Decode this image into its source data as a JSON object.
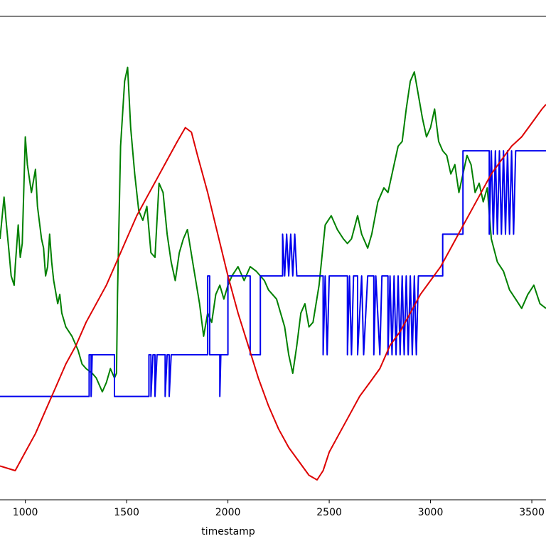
{
  "chart_data": {
    "type": "line",
    "xlabel": "timestamp",
    "ylabel": "",
    "title": "",
    "grid": false,
    "xlim": [
      875,
      3570
    ],
    "ylim": [
      0,
      100
    ],
    "x_ticks": [
      1000,
      1500,
      2000,
      2500,
      3000,
      3500
    ],
    "x_tick_labels": [
      "1000",
      "1500",
      "2000",
      "2500",
      "3000",
      "3500"
    ],
    "series": [
      {
        "color": "#008000",
        "points": [
          [
            875,
            52
          ],
          [
            895,
            61
          ],
          [
            905,
            56
          ],
          [
            920,
            49
          ],
          [
            930,
            44
          ],
          [
            945,
            42
          ],
          [
            950,
            46
          ],
          [
            965,
            55
          ],
          [
            975,
            48
          ],
          [
            985,
            51
          ],
          [
            1000,
            74
          ],
          [
            1010,
            68
          ],
          [
            1030,
            62
          ],
          [
            1050,
            67
          ],
          [
            1060,
            59
          ],
          [
            1080,
            52
          ],
          [
            1090,
            50
          ],
          [
            1100,
            44
          ],
          [
            1110,
            46
          ],
          [
            1120,
            53
          ],
          [
            1130,
            47
          ],
          [
            1140,
            43
          ],
          [
            1160,
            38
          ],
          [
            1170,
            40
          ],
          [
            1180,
            36
          ],
          [
            1200,
            33
          ],
          [
            1230,
            31
          ],
          [
            1260,
            28
          ],
          [
            1280,
            25
          ],
          [
            1300,
            24
          ],
          [
            1330,
            23
          ],
          [
            1350,
            22
          ],
          [
            1380,
            19
          ],
          [
            1400,
            21
          ],
          [
            1420,
            24
          ],
          [
            1440,
            22
          ],
          [
            1450,
            23
          ],
          [
            1455,
            40
          ],
          [
            1470,
            72
          ],
          [
            1490,
            86
          ],
          [
            1505,
            89
          ],
          [
            1520,
            76
          ],
          [
            1540,
            66
          ],
          [
            1560,
            58
          ],
          [
            1580,
            56
          ],
          [
            1600,
            59
          ],
          [
            1620,
            49
          ],
          [
            1640,
            48
          ],
          [
            1660,
            64
          ],
          [
            1680,
            62
          ],
          [
            1700,
            53
          ],
          [
            1720,
            47
          ],
          [
            1740,
            43
          ],
          [
            1760,
            49
          ],
          [
            1780,
            52
          ],
          [
            1800,
            54
          ],
          [
            1830,
            46
          ],
          [
            1860,
            38
          ],
          [
            1880,
            31
          ],
          [
            1900,
            36
          ],
          [
            1920,
            34
          ],
          [
            1940,
            40
          ],
          [
            1960,
            42
          ],
          [
            1980,
            39
          ],
          [
            2000,
            42
          ],
          [
            2020,
            44
          ],
          [
            2050,
            46
          ],
          [
            2080,
            43
          ],
          [
            2110,
            46
          ],
          [
            2140,
            45
          ],
          [
            2180,
            43
          ],
          [
            2200,
            41
          ],
          [
            2240,
            39
          ],
          [
            2260,
            36
          ],
          [
            2280,
            33
          ],
          [
            2300,
            27
          ],
          [
            2320,
            23
          ],
          [
            2340,
            29
          ],
          [
            2360,
            36
          ],
          [
            2380,
            38
          ],
          [
            2400,
            33
          ],
          [
            2420,
            34
          ],
          [
            2450,
            42
          ],
          [
            2480,
            55
          ],
          [
            2510,
            57
          ],
          [
            2540,
            54
          ],
          [
            2570,
            52
          ],
          [
            2590,
            51
          ],
          [
            2610,
            52
          ],
          [
            2640,
            57
          ],
          [
            2660,
            53
          ],
          [
            2690,
            50
          ],
          [
            2710,
            53
          ],
          [
            2740,
            60
          ],
          [
            2770,
            63
          ],
          [
            2790,
            62
          ],
          [
            2820,
            68
          ],
          [
            2840,
            72
          ],
          [
            2860,
            73
          ],
          [
            2880,
            80
          ],
          [
            2900,
            86
          ],
          [
            2920,
            88
          ],
          [
            2940,
            83
          ],
          [
            2960,
            78
          ],
          [
            2980,
            74
          ],
          [
            3000,
            76
          ],
          [
            3020,
            80
          ],
          [
            3040,
            73
          ],
          [
            3060,
            71
          ],
          [
            3080,
            70
          ],
          [
            3100,
            66
          ],
          [
            3120,
            68
          ],
          [
            3140,
            62
          ],
          [
            3160,
            66
          ],
          [
            3180,
            70
          ],
          [
            3200,
            68
          ],
          [
            3220,
            62
          ],
          [
            3240,
            64
          ],
          [
            3260,
            60
          ],
          [
            3280,
            63
          ],
          [
            3300,
            52
          ],
          [
            3330,
            47
          ],
          [
            3360,
            45
          ],
          [
            3390,
            41
          ],
          [
            3420,
            39
          ],
          [
            3450,
            37
          ],
          [
            3480,
            40
          ],
          [
            3510,
            42
          ],
          [
            3540,
            38
          ],
          [
            3570,
            37
          ]
        ]
      },
      {
        "color": "#0000ee",
        "points": [
          [
            875,
            18
          ],
          [
            1315,
            18
          ],
          [
            1315,
            27
          ],
          [
            1325,
            27
          ],
          [
            1325,
            18
          ],
          [
            1330,
            27
          ],
          [
            1440,
            27
          ],
          [
            1440,
            18
          ],
          [
            1610,
            18
          ],
          [
            1610,
            27
          ],
          [
            1620,
            27
          ],
          [
            1620,
            18
          ],
          [
            1630,
            27
          ],
          [
            1640,
            27
          ],
          [
            1640,
            18
          ],
          [
            1650,
            27
          ],
          [
            1690,
            27
          ],
          [
            1690,
            18
          ],
          [
            1700,
            27
          ],
          [
            1710,
            27
          ],
          [
            1710,
            18
          ],
          [
            1720,
            27
          ],
          [
            1900,
            27
          ],
          [
            1900,
            44
          ],
          [
            1910,
            44
          ],
          [
            1910,
            27
          ],
          [
            1960,
            27
          ],
          [
            1960,
            18
          ],
          [
            1965,
            27
          ],
          [
            2000,
            27
          ],
          [
            2000,
            44
          ],
          [
            2110,
            44
          ],
          [
            2110,
            27
          ],
          [
            2160,
            27
          ],
          [
            2160,
            44
          ],
          [
            2270,
            44
          ],
          [
            2270,
            53
          ],
          [
            2280,
            44
          ],
          [
            2290,
            53
          ],
          [
            2300,
            44
          ],
          [
            2310,
            53
          ],
          [
            2320,
            44
          ],
          [
            2330,
            53
          ],
          [
            2340,
            44
          ],
          [
            2470,
            44
          ],
          [
            2470,
            27
          ],
          [
            2480,
            44
          ],
          [
            2490,
            27
          ],
          [
            2500,
            44
          ],
          [
            2590,
            44
          ],
          [
            2590,
            27
          ],
          [
            2600,
            44
          ],
          [
            2610,
            27
          ],
          [
            2620,
            44
          ],
          [
            2640,
            44
          ],
          [
            2640,
            27
          ],
          [
            2660,
            44
          ],
          [
            2670,
            27
          ],
          [
            2690,
            44
          ],
          [
            2720,
            44
          ],
          [
            2720,
            27
          ],
          [
            2730,
            44
          ],
          [
            2750,
            27
          ],
          [
            2760,
            44
          ],
          [
            2790,
            44
          ],
          [
            2790,
            27
          ],
          [
            2800,
            44
          ],
          [
            2810,
            27
          ],
          [
            2820,
            44
          ],
          [
            2830,
            27
          ],
          [
            2840,
            44
          ],
          [
            2850,
            27
          ],
          [
            2860,
            44
          ],
          [
            2870,
            27
          ],
          [
            2880,
            44
          ],
          [
            2890,
            27
          ],
          [
            2900,
            44
          ],
          [
            2910,
            27
          ],
          [
            2920,
            44
          ],
          [
            2930,
            27
          ],
          [
            2940,
            44
          ],
          [
            3060,
            44
          ],
          [
            3060,
            53
          ],
          [
            3160,
            53
          ],
          [
            3160,
            71
          ],
          [
            3290,
            71
          ],
          [
            3290,
            53
          ],
          [
            3300,
            71
          ],
          [
            3310,
            53
          ],
          [
            3320,
            71
          ],
          [
            3330,
            53
          ],
          [
            3340,
            71
          ],
          [
            3350,
            53
          ],
          [
            3360,
            71
          ],
          [
            3370,
            53
          ],
          [
            3380,
            71
          ],
          [
            3390,
            53
          ],
          [
            3400,
            71
          ],
          [
            3410,
            53
          ],
          [
            3420,
            71
          ],
          [
            3570,
            71
          ]
        ]
      },
      {
        "color": "#dd0000",
        "points": [
          [
            875,
            3
          ],
          [
            950,
            2
          ],
          [
            1000,
            6
          ],
          [
            1050,
            10
          ],
          [
            1100,
            15
          ],
          [
            1150,
            20
          ],
          [
            1200,
            25
          ],
          [
            1250,
            29
          ],
          [
            1300,
            34
          ],
          [
            1350,
            38
          ],
          [
            1400,
            42
          ],
          [
            1450,
            47
          ],
          [
            1500,
            52
          ],
          [
            1550,
            57
          ],
          [
            1600,
            61
          ],
          [
            1650,
            65
          ],
          [
            1700,
            69
          ],
          [
            1750,
            73
          ],
          [
            1790,
            76
          ],
          [
            1820,
            75
          ],
          [
            1850,
            70
          ],
          [
            1900,
            62
          ],
          [
            1950,
            53
          ],
          [
            2000,
            44
          ],
          [
            2050,
            36
          ],
          [
            2100,
            29
          ],
          [
            2150,
            22
          ],
          [
            2200,
            16
          ],
          [
            2250,
            11
          ],
          [
            2300,
            7
          ],
          [
            2350,
            4
          ],
          [
            2400,
            1
          ],
          [
            2440,
            0
          ],
          [
            2470,
            2
          ],
          [
            2500,
            6
          ],
          [
            2550,
            10
          ],
          [
            2600,
            14
          ],
          [
            2650,
            18
          ],
          [
            2700,
            21
          ],
          [
            2750,
            24
          ],
          [
            2800,
            29
          ],
          [
            2850,
            32
          ],
          [
            2900,
            36
          ],
          [
            2950,
            40
          ],
          [
            3000,
            43
          ],
          [
            3050,
            46
          ],
          [
            3100,
            50
          ],
          [
            3150,
            54
          ],
          [
            3200,
            58
          ],
          [
            3250,
            62
          ],
          [
            3300,
            66
          ],
          [
            3350,
            69
          ],
          [
            3400,
            72
          ],
          [
            3450,
            74
          ],
          [
            3500,
            77
          ],
          [
            3550,
            80
          ],
          [
            3570,
            81
          ]
        ]
      }
    ]
  }
}
